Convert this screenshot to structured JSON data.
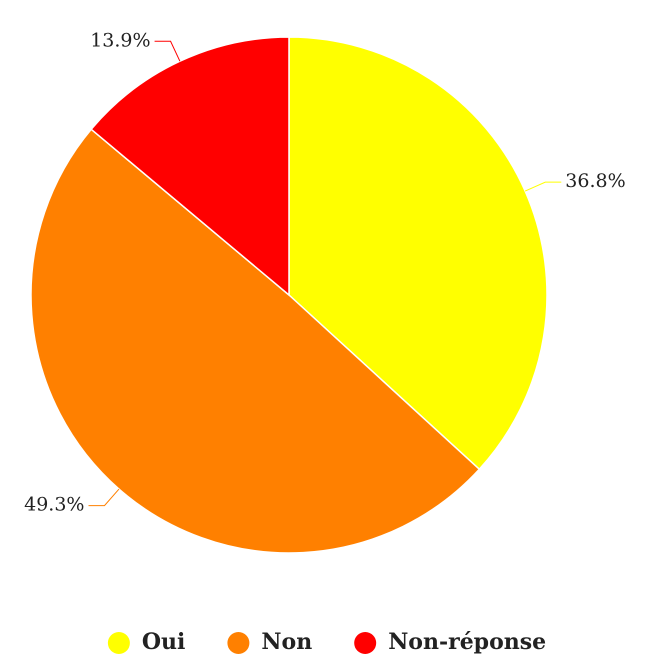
{
  "chart_data": {
    "type": "pie",
    "categories": [
      "Oui",
      "Non",
      "Non-réponse"
    ],
    "values": [
      36.8,
      49.3,
      13.9
    ],
    "value_labels": [
      "36.8%",
      "49.3%",
      "13.9%"
    ],
    "colors": [
      "#ffff00",
      "#ff8000",
      "#ff0000"
    ],
    "legend": "bottom"
  }
}
